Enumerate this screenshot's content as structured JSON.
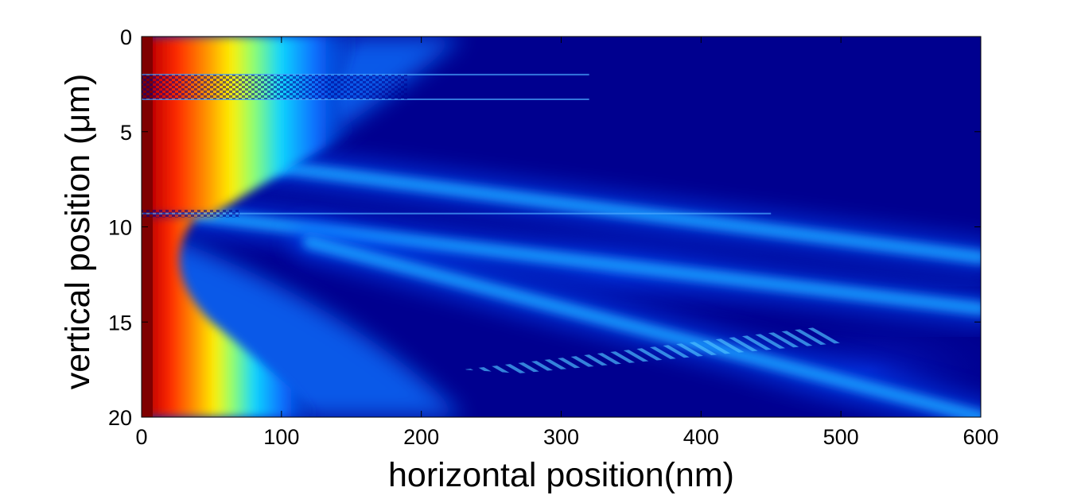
{
  "chart_data": {
    "type": "heatmap",
    "title": "",
    "xlabel": "horizontal position(nm)",
    "ylabel": "vertical position (μm)",
    "xlim": [
      0,
      600
    ],
    "ylim": [
      20,
      0
    ],
    "y_axis_inverted": true,
    "x_ticks": [
      0,
      100,
      200,
      300,
      400,
      500,
      600
    ],
    "y_ticks": [
      0,
      5,
      10,
      15,
      20
    ],
    "colormap": "jet",
    "colorbar": false,
    "grid": false,
    "field": {
      "background": "low intensity (dark blue)",
      "source_edge": {
        "x": 0,
        "y_range": [
          0,
          20
        ],
        "intensity": "max"
      },
      "interface_lines_y": [
        2,
        3.3,
        9.3
      ],
      "beams": [
        {
          "from": [
            40,
            9.4
          ],
          "to": [
            600,
            14.3
          ]
        },
        {
          "from": [
            60,
            6.5
          ],
          "to": [
            600,
            11.6
          ]
        },
        {
          "from": [
            120,
            10.8
          ],
          "to": [
            600,
            20
          ]
        }
      ],
      "fringe_region": {
        "x_range": [
          230,
          480
        ],
        "y_range": [
          15.3,
          17.5
        ]
      }
    }
  }
}
